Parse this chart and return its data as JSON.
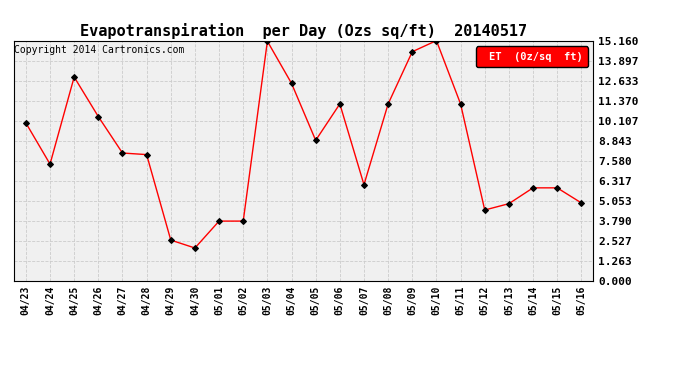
{
  "title": "Evapotranspiration  per Day (Ozs sq/ft)  20140517",
  "copyright": "Copyright 2014 Cartronics.com",
  "legend_label": "ET  (0z/sq  ft)",
  "dates": [
    "04/23",
    "04/24",
    "04/25",
    "04/26",
    "04/27",
    "04/28",
    "04/29",
    "04/30",
    "05/01",
    "05/02",
    "05/03",
    "05/04",
    "05/05",
    "05/06",
    "05/07",
    "05/08",
    "05/09",
    "05/10",
    "05/11",
    "05/12",
    "05/13",
    "05/14",
    "05/15",
    "05/16"
  ],
  "values": [
    10.0,
    7.4,
    12.9,
    10.4,
    8.1,
    8.0,
    2.6,
    2.1,
    3.8,
    3.8,
    15.16,
    12.5,
    8.9,
    11.2,
    6.1,
    11.2,
    14.5,
    15.2,
    11.2,
    4.5,
    4.9,
    5.9,
    5.9,
    4.95
  ],
  "yticks": [
    0.0,
    1.263,
    2.527,
    3.79,
    5.053,
    6.317,
    7.58,
    8.843,
    10.107,
    11.37,
    12.633,
    13.897,
    15.16
  ],
  "ylim": [
    0.0,
    15.16
  ],
  "line_color": "red",
  "marker_color": "black",
  "bg_color": "#ffffff",
  "plot_bg_color": "#f0f0f0",
  "grid_color": "#cccccc",
  "legend_bg": "red",
  "legend_text_color": "white",
  "title_fontsize": 11,
  "copyright_fontsize": 7,
  "tick_fontsize": 7,
  "ytick_fontsize": 8
}
